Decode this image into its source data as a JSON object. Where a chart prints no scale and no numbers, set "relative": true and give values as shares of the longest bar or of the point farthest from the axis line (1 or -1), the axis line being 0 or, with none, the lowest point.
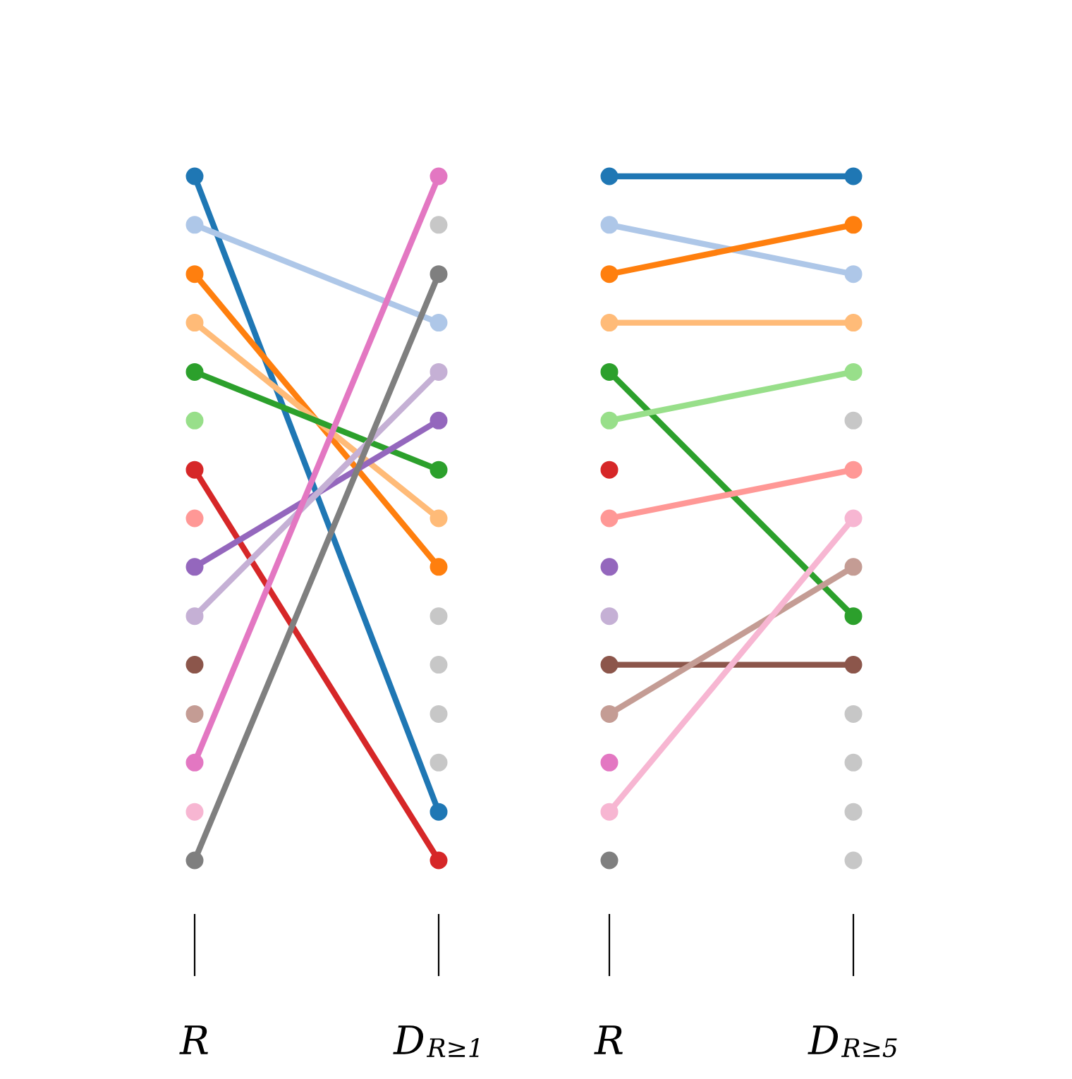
{
  "chart_data": [
    {
      "type": "line",
      "relative": true,
      "marker": "circle",
      "line_style": "solid",
      "grid": false,
      "legend": false,
      "categories": [
        "R",
        "D$_{R≥1}$"
      ],
      "series": [
        {
          "color": "#1f77b4",
          "values": [
            1.0,
            0.071
          ]
        },
        {
          "color": "#aec7e8",
          "values": [
            0.929,
            0.786
          ]
        },
        {
          "color": "#ff7f0e",
          "values": [
            0.857,
            0.429
          ]
        },
        {
          "color": "#ffbb78",
          "values": [
            0.786,
            0.5
          ]
        },
        {
          "color": "#2ca02c",
          "values": [
            0.714,
            0.571
          ]
        },
        {
          "color": "#98df8a",
          "values": [
            0.643,
            null
          ]
        },
        {
          "color": "#d62728",
          "values": [
            0.571,
            0.0
          ]
        },
        {
          "color": "#ff9896",
          "values": [
            0.5,
            null
          ]
        },
        {
          "color": "#9467bd",
          "values": [
            0.429,
            0.643
          ]
        },
        {
          "color": "#c5b0d5",
          "values": [
            0.357,
            0.714
          ]
        },
        {
          "color": "#8c564b",
          "values": [
            0.286,
            null
          ]
        },
        {
          "color": "#c49c94",
          "values": [
            0.214,
            null
          ]
        },
        {
          "color": "#e377c2",
          "values": [
            0.143,
            1.0
          ]
        },
        {
          "color": "#f7b6d2",
          "values": [
            0.071,
            null
          ]
        },
        {
          "color": "#7f7f7f",
          "values": [
            0.0,
            0.857
          ]
        },
        {
          "color": "#c7c7c7",
          "values": [
            null,
            0.929
          ]
        },
        {
          "color": "#c7c7c7",
          "values": [
            null,
            0.357
          ]
        },
        {
          "color": "#c7c7c7",
          "values": [
            null,
            0.286
          ]
        },
        {
          "color": "#c7c7c7",
          "values": [
            null,
            0.214
          ]
        },
        {
          "color": "#c7c7c7",
          "values": [
            null,
            0.143
          ]
        }
      ]
    },
    {
      "type": "line",
      "relative": true,
      "marker": "circle",
      "line_style": "solid",
      "grid": false,
      "legend": false,
      "categories": [
        "R",
        "D$_{R≥5}$"
      ],
      "series": [
        {
          "color": "#1f77b4",
          "values": [
            1.0,
            1.0
          ]
        },
        {
          "color": "#aec7e8",
          "values": [
            0.929,
            0.857
          ]
        },
        {
          "color": "#ff7f0e",
          "values": [
            0.857,
            0.929
          ]
        },
        {
          "color": "#ffbb78",
          "values": [
            0.786,
            0.786
          ]
        },
        {
          "color": "#2ca02c",
          "values": [
            0.714,
            0.357
          ]
        },
        {
          "color": "#98df8a",
          "values": [
            0.643,
            0.714
          ]
        },
        {
          "color": "#d62728",
          "values": [
            0.571,
            null
          ]
        },
        {
          "color": "#ff9896",
          "values": [
            0.5,
            0.571
          ]
        },
        {
          "color": "#9467bd",
          "values": [
            0.429,
            null
          ]
        },
        {
          "color": "#c5b0d5",
          "values": [
            0.357,
            null
          ]
        },
        {
          "color": "#8c564b",
          "values": [
            0.286,
            0.286
          ]
        },
        {
          "color": "#c49c94",
          "values": [
            0.214,
            0.429
          ]
        },
        {
          "color": "#e377c2",
          "values": [
            0.143,
            null
          ]
        },
        {
          "color": "#f7b6d2",
          "values": [
            0.071,
            0.5
          ]
        },
        {
          "color": "#7f7f7f",
          "values": [
            0.0,
            null
          ]
        },
        {
          "color": "#c7c7c7",
          "values": [
            null,
            0.643
          ]
        },
        {
          "color": "#c7c7c7",
          "values": [
            null,
            0.214
          ]
        },
        {
          "color": "#c7c7c7",
          "values": [
            null,
            0.143
          ]
        },
        {
          "color": "#c7c7c7",
          "values": [
            null,
            0.071
          ]
        },
        {
          "color": "#c7c7c7",
          "values": [
            null,
            0.0
          ]
        }
      ]
    }
  ]
}
